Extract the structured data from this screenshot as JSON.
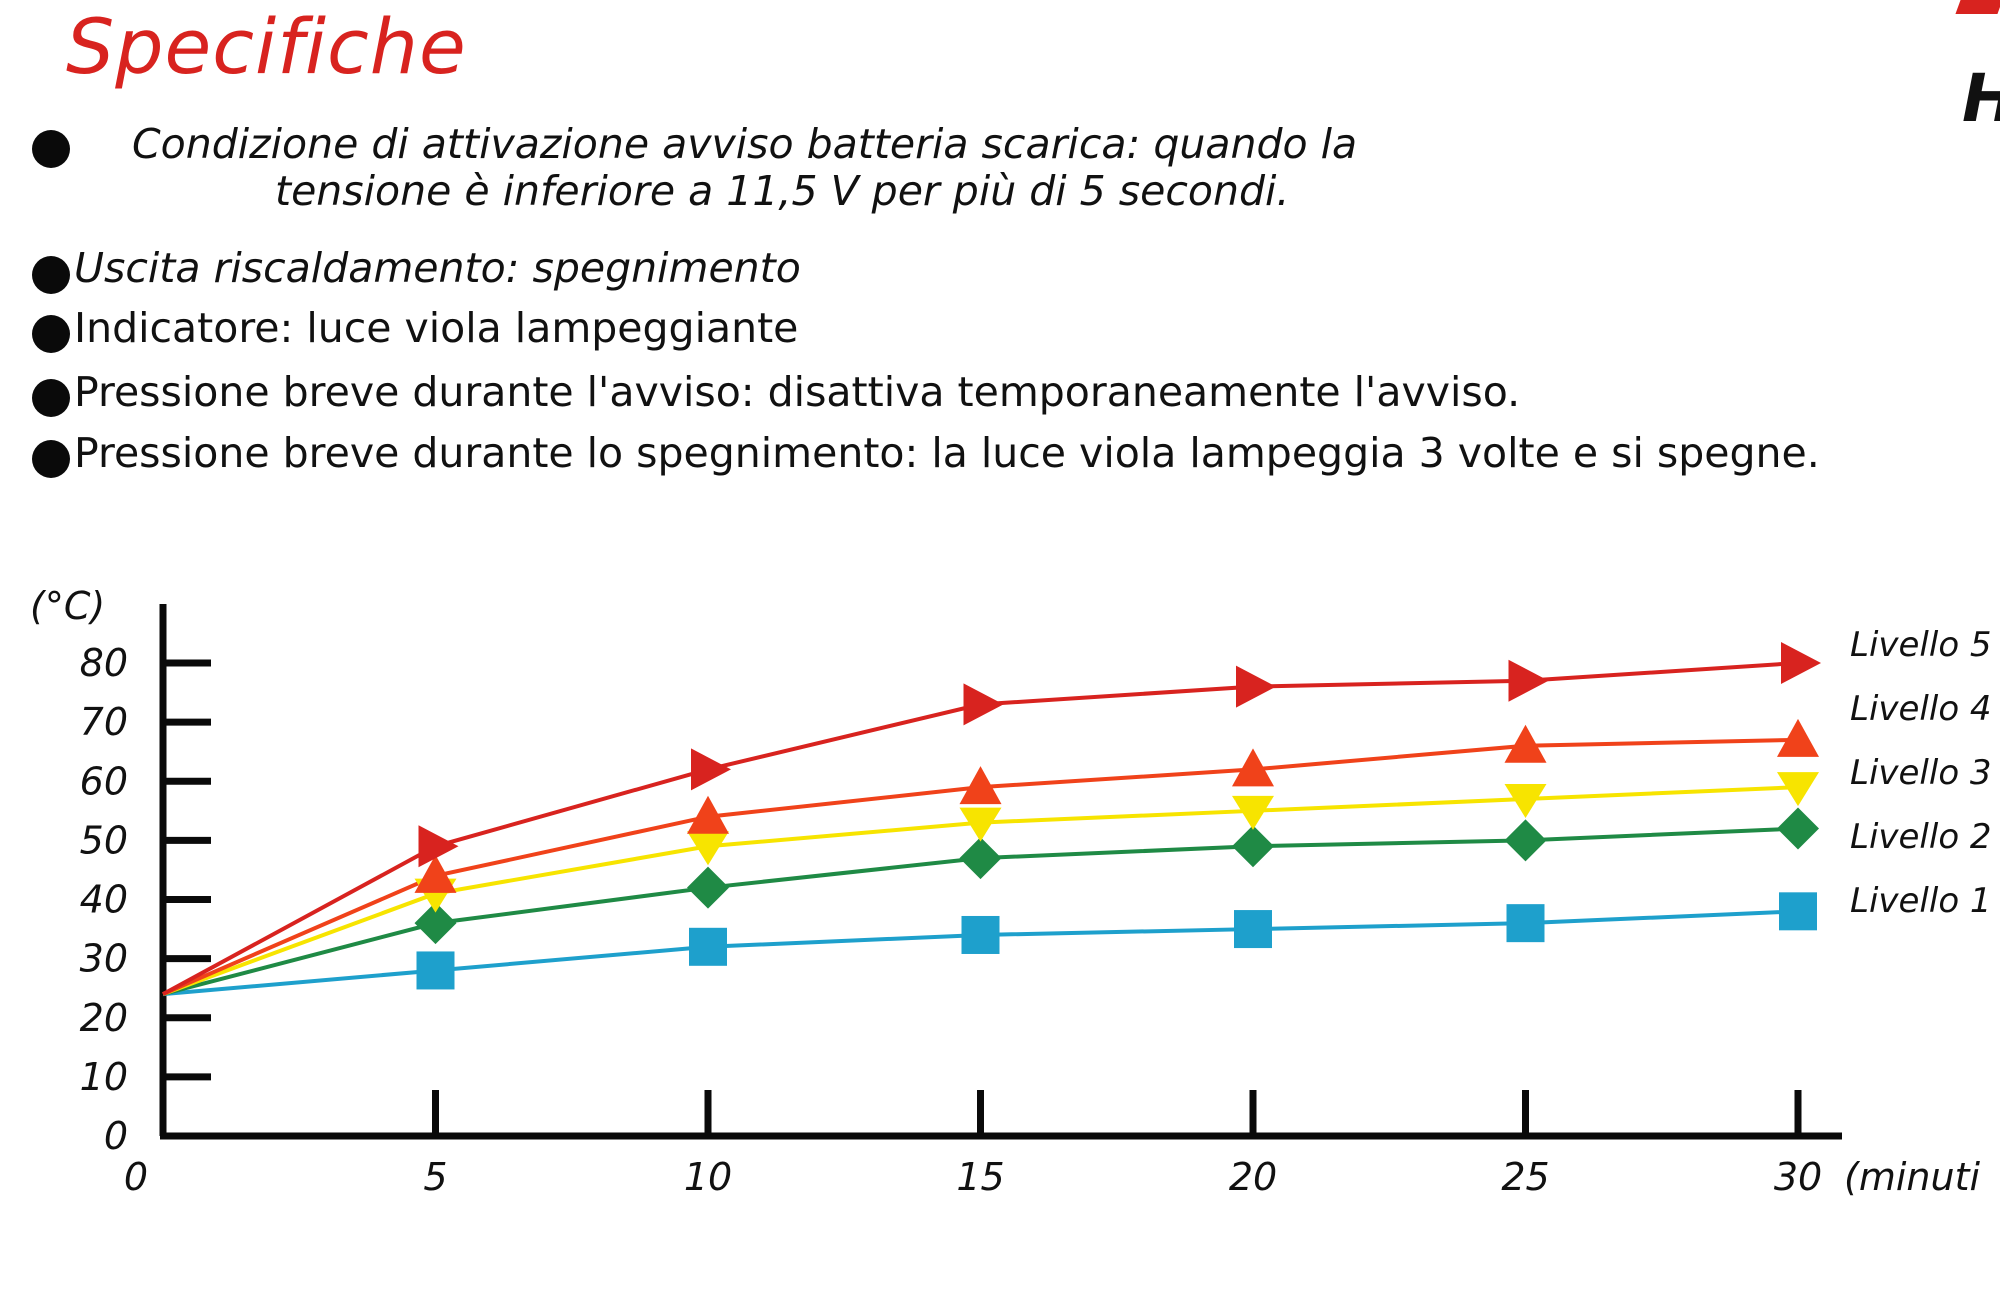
{
  "header": {
    "title": "Specifiche",
    "corner_text": "H"
  },
  "specs": [
    {
      "line1": "Condizione di attivazione avviso batteria scarica: quando la",
      "line2": "tensione è inferiore a 11,5 V per più di 5 secondi."
    },
    {
      "text": "Uscita riscaldamento: spegnimento"
    },
    {
      "text": "Indicatore: luce viola lampeggiante"
    },
    {
      "text": "Pressione breve durante l'avviso: disattiva temporaneamente l'avviso."
    },
    {
      "text": "Pressione breve durante lo spegnimento: la luce viola lampeggia 3 volte e si spegne."
    }
  ],
  "chart_data": {
    "type": "line",
    "ylabel": "(°C)",
    "xlabel": "(minuti",
    "xlim": [
      0,
      30
    ],
    "ylim": [
      0,
      80
    ],
    "x_ticks": [
      0,
      5,
      10,
      15,
      20,
      25,
      30
    ],
    "y_ticks": [
      0,
      10,
      20,
      30,
      40,
      50,
      60,
      70,
      80
    ],
    "x": [
      0,
      5,
      10,
      15,
      20,
      25,
      30
    ],
    "grid": false,
    "legend_position": "right",
    "series": [
      {
        "name": "Livello 5",
        "color": "#d8231f",
        "marker": "triangle-right",
        "values": [
          24,
          49,
          62,
          73,
          76,
          77,
          80
        ]
      },
      {
        "name": "Livello 4",
        "color": "#f0421a",
        "marker": "triangle-up",
        "values": [
          24,
          44,
          54,
          59,
          62,
          66,
          67
        ]
      },
      {
        "name": "Livello 3",
        "color": "#f7e400",
        "marker": "triangle-down",
        "values": [
          24,
          41,
          49,
          53,
          55,
          57,
          59
        ]
      },
      {
        "name": "Livello 2",
        "color": "#1f8a45",
        "marker": "diamond",
        "values": [
          24,
          36,
          42,
          47,
          49,
          50,
          52
        ]
      },
      {
        "name": "Livello 1",
        "color": "#1ea0cc",
        "marker": "square",
        "values": [
          24,
          28,
          32,
          34,
          35,
          36,
          38
        ]
      }
    ]
  }
}
